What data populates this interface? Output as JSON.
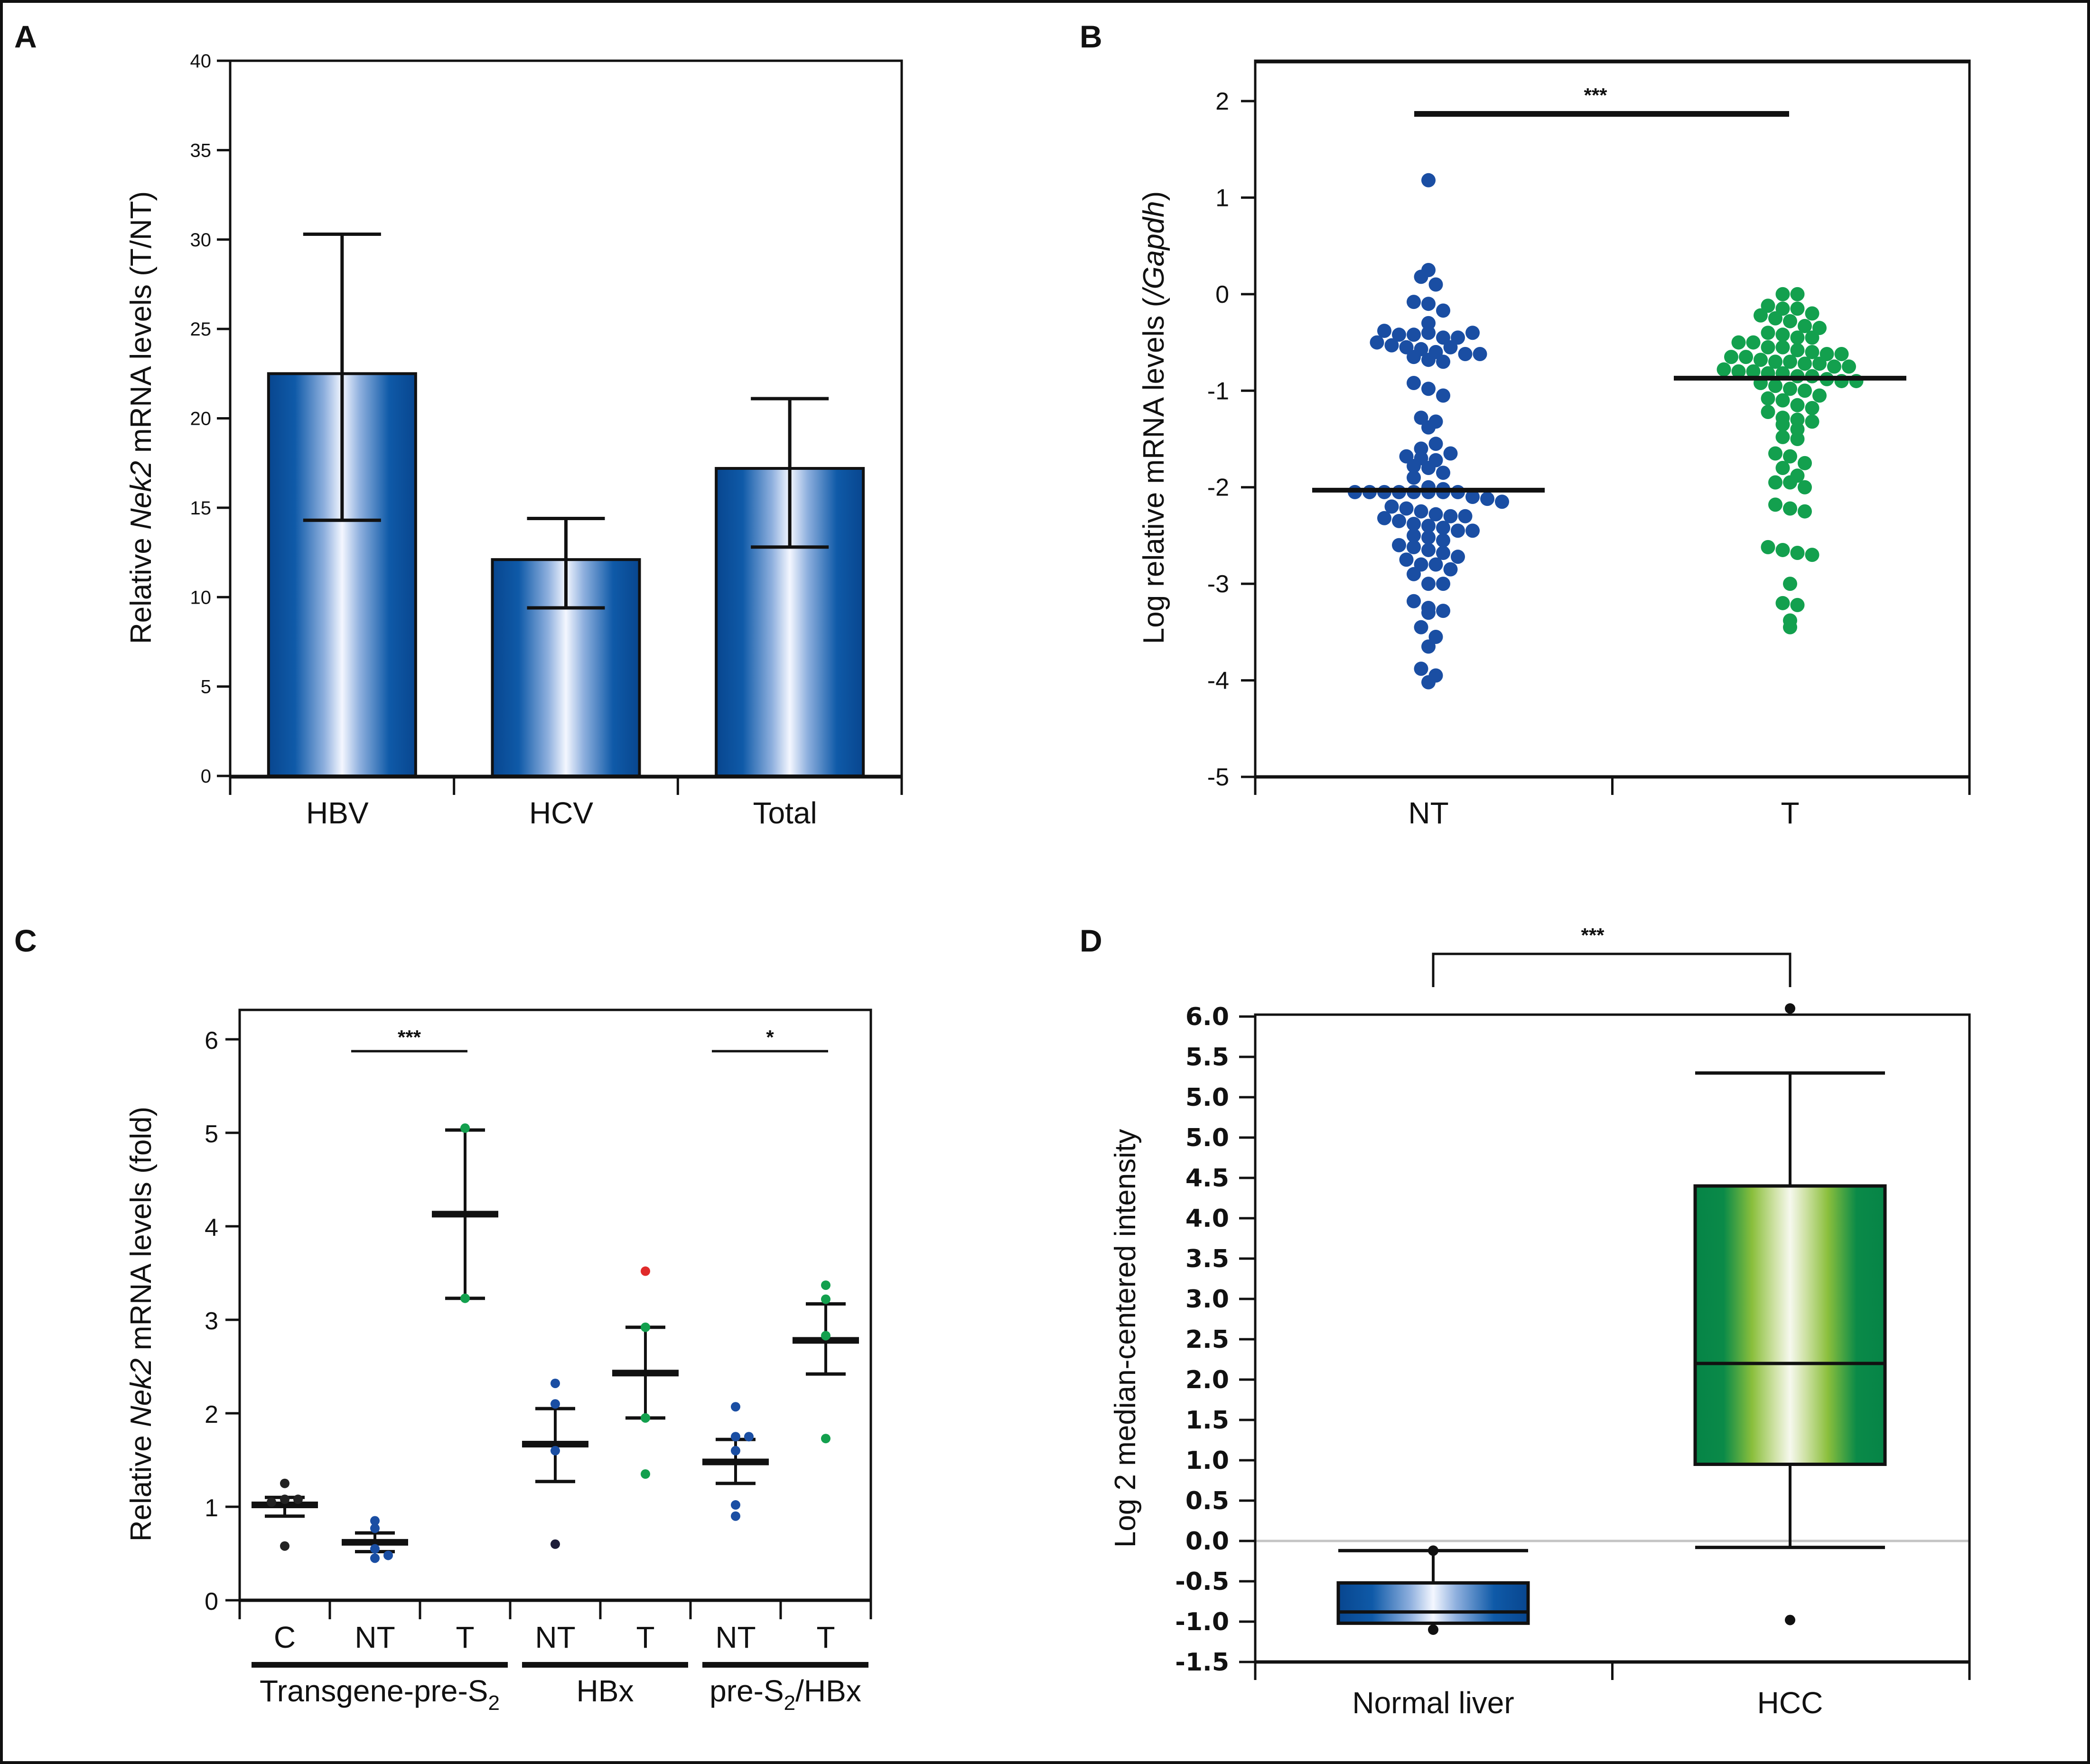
{
  "figure": {
    "panels": [
      "A",
      "B",
      "C",
      "D"
    ]
  },
  "chart_data": [
    {
      "panel": "A",
      "type": "bar",
      "title": "",
      "xlabel": "",
      "ylabel_parts": [
        "Relative ",
        "Nek2",
        " mRNA levels (T/NT)"
      ],
      "categories": [
        "HBV",
        "HCV",
        "Total"
      ],
      "values": [
        22.5,
        12.1,
        17.2
      ],
      "error_low": [
        14.3,
        9.4,
        12.8
      ],
      "error_high": [
        30.3,
        14.4,
        21.1
      ],
      "ylim": [
        0,
        40
      ],
      "yticks": [
        "0",
        "5",
        "10",
        "15",
        "20",
        "25",
        "30",
        "35",
        "40"
      ],
      "bar_color": "#0a4f9e",
      "grid": false
    },
    {
      "panel": "B",
      "type": "scatter",
      "title": "",
      "xlabel": "",
      "ylabel_parts": [
        "Log relative mRNA levels (",
        "/Gapdh",
        ")"
      ],
      "categories": [
        "NT",
        "T"
      ],
      "ylim": [
        -5,
        2.4
      ],
      "yticks": [
        "2",
        "1",
        "0",
        "-1",
        "-2",
        "-3",
        "-4",
        "-5"
      ],
      "significance": "***",
      "series": [
        {
          "name": "NT",
          "color": "#1a4ea3",
          "median": -2.03,
          "values": [
            1.18,
            0.25,
            0.18,
            0.1,
            -0.08,
            -0.1,
            -0.17,
            -0.3,
            -0.38,
            -0.42,
            -0.42,
            -0.4,
            -0.45,
            -0.5,
            -0.45,
            -0.4,
            -0.53,
            -0.55,
            -0.57,
            -0.6,
            -0.55,
            -0.62,
            -0.62,
            -0.65,
            -0.68,
            -0.7,
            -0.92,
            -0.98,
            -1.05,
            -1.28,
            -1.32,
            -1.38,
            -1.6,
            -1.55,
            -1.68,
            -1.7,
            -1.72,
            -1.65,
            -1.78,
            -1.8,
            -1.85,
            -1.9,
            -2.0,
            -2.02,
            -2.05,
            -2.05,
            -2.05,
            -2.05,
            -2.05,
            -2.05,
            -2.05,
            -2.05,
            -2.1,
            -2.12,
            -2.15,
            -2.2,
            -2.22,
            -2.25,
            -2.28,
            -2.3,
            -2.3,
            -2.32,
            -2.35,
            -2.38,
            -2.4,
            -2.42,
            -2.45,
            -2.45,
            -2.5,
            -2.52,
            -2.55,
            -2.6,
            -2.62,
            -2.65,
            -2.68,
            -2.72,
            -2.75,
            -2.8,
            -2.8,
            -2.85,
            -2.9,
            -3.0,
            -3.0,
            -3.18,
            -3.25,
            -3.28,
            -3.3,
            -3.45,
            -3.55,
            -3.65,
            -3.88,
            -3.95,
            -4.02
          ]
        },
        {
          "name": "T",
          "color": "#13a04e",
          "median": -0.87,
          "values": [
            0.0,
            0.0,
            -0.12,
            -0.15,
            -0.15,
            -0.2,
            -0.22,
            -0.25,
            -0.28,
            -0.33,
            -0.35,
            -0.4,
            -0.42,
            -0.45,
            -0.45,
            -0.5,
            -0.5,
            -0.55,
            -0.55,
            -0.58,
            -0.6,
            -0.62,
            -0.62,
            -0.65,
            -0.65,
            -0.68,
            -0.7,
            -0.7,
            -0.72,
            -0.72,
            -0.75,
            -0.75,
            -0.78,
            -0.8,
            -0.8,
            -0.82,
            -0.82,
            -0.85,
            -0.85,
            -0.88,
            -0.9,
            -0.9,
            -0.92,
            -0.95,
            -0.98,
            -1.0,
            -1.05,
            -1.08,
            -1.1,
            -1.15,
            -1.18,
            -1.22,
            -1.28,
            -1.3,
            -1.32,
            -1.35,
            -1.4,
            -1.48,
            -1.5,
            -1.65,
            -1.68,
            -1.75,
            -1.8,
            -1.88,
            -1.95,
            -1.95,
            -2.0,
            -2.18,
            -2.22,
            -2.25,
            -2.62,
            -2.65,
            -2.68,
            -2.7,
            -3.0,
            -3.2,
            -3.22,
            -3.38,
            -3.45
          ]
        }
      ]
    },
    {
      "panel": "C",
      "type": "scatter",
      "title": "",
      "xlabel": "",
      "ylabel_parts": [
        "Relative ",
        "Nek2",
        " mRNA levels (fold)"
      ],
      "categories": [
        "C",
        "NT",
        "T",
        "NT",
        "T",
        "NT",
        "T"
      ],
      "groups": [
        {
          "label_main": "Transgene-pre-S",
          "label_sub": "2",
          "label_tail": "",
          "span": [
            0,
            2
          ]
        },
        {
          "label_main": "HBx",
          "label_sub": "",
          "label_tail": "",
          "span": [
            3,
            4
          ]
        },
        {
          "label_main": "pre-S",
          "label_sub": "2",
          "label_tail": "/HBx",
          "span": [
            5,
            6
          ]
        }
      ],
      "ylim": [
        0,
        6.3
      ],
      "yticks": [
        "0",
        "1",
        "2",
        "3",
        "4",
        "5",
        "6"
      ],
      "significance": [
        {
          "label": "***",
          "from": 1,
          "to": 2
        },
        {
          "label": "*",
          "from": 5,
          "to": 6
        }
      ],
      "series": [
        {
          "name": "C",
          "color": "#222222",
          "mean": 1.02,
          "sem_low": 0.9,
          "sem_high": 1.1,
          "points": [
            1.25,
            1.08,
            1.08,
            1.05,
            0.58
          ]
        },
        {
          "name": "NT",
          "color": "#1a4ea3",
          "mean": 0.62,
          "sem_low": 0.52,
          "sem_high": 0.72,
          "points": [
            0.85,
            0.77,
            0.55,
            0.45,
            0.48
          ]
        },
        {
          "name": "T",
          "color": "#13a04e",
          "mean": 4.13,
          "sem_low": 3.23,
          "sem_high": 5.03,
          "points": [
            5.05,
            3.23
          ]
        },
        {
          "name": "NT",
          "color": "#1a4ea3",
          "mean": 1.67,
          "sem_low": 1.27,
          "sem_high": 2.05,
          "points": [
            2.32,
            2.1,
            1.6,
            0.6
          ]
        },
        {
          "name": "T",
          "color": "#13a04e",
          "mean": 2.43,
          "sem_low": 1.95,
          "sem_high": 2.92,
          "points": [
            3.52,
            2.92,
            1.95,
            1.35
          ],
          "outlier_color": "#e02a2a"
        },
        {
          "name": "NT",
          "color": "#1a4ea3",
          "mean": 1.48,
          "sem_low": 1.25,
          "sem_high": 1.72,
          "points": [
            2.07,
            1.75,
            1.75,
            1.6,
            1.02,
            0.9
          ]
        },
        {
          "name": "T",
          "color": "#13a04e",
          "mean": 2.78,
          "sem_low": 2.42,
          "sem_high": 3.17,
          "points": [
            3.37,
            3.22,
            2.83,
            1.73
          ]
        }
      ]
    },
    {
      "panel": "D",
      "type": "box",
      "title": "",
      "xlabel": "",
      "ylabel": "Log 2 median-centered intensity",
      "categories": [
        "Normal liver",
        "HCC"
      ],
      "ylim": [
        -1.5,
        6.0
      ],
      "yticks": [
        "6.0",
        "5.5",
        "5.0",
        "5.0",
        "4.5",
        "4.0",
        "3.5",
        "3.0",
        "2.5",
        "2.0",
        "1.5",
        "1.0",
        "0.5",
        "0.0",
        "-0.5",
        "-1.0",
        "-1.5"
      ],
      "reference_line": 0.0,
      "significance": "***",
      "boxes": [
        {
          "name": "Normal liver",
          "color": "#0a4f9e",
          "whisker_low": -1.02,
          "q1": -1.02,
          "median": -0.88,
          "q3": -0.52,
          "whisker_high": -0.12,
          "outliers": [
            -1.1,
            -0.12
          ]
        },
        {
          "name": "HCC",
          "color": "#0a8a4a",
          "whisker_low": -0.08,
          "q1": 0.95,
          "median": 2.2,
          "q3": 4.4,
          "whisker_high": 5.8,
          "outliers": [
            6.6,
            -0.98
          ]
        }
      ]
    }
  ]
}
